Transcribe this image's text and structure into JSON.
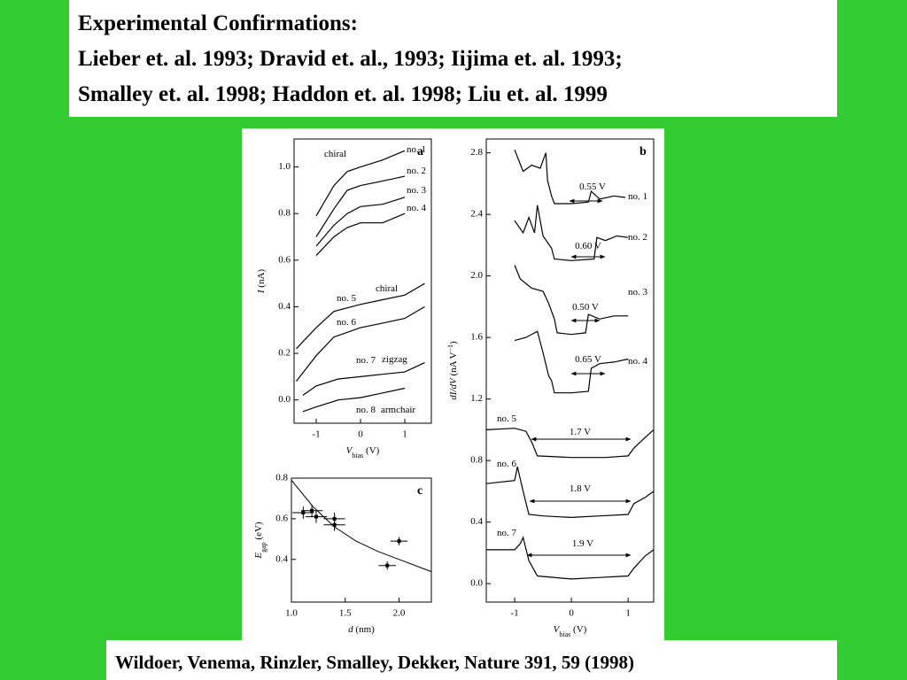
{
  "header": {
    "lines": [
      "Experimental Confirmations:",
      "Lieber et. al. 1993; Dravid et. al., 1993; Iijima et. al. 1993;",
      "Smalley et. al. 1998; Haddon et. al. 1998; Liu et. al. 1999"
    ]
  },
  "citation": "Wildoer, Venema, Rinzler, Smalley, Dekker, Nature 391, 59 (1998)",
  "chart_data": [
    {
      "type": "line",
      "panel_label": "a",
      "xlabel": [
        {
          "text": "V",
          "italic": true
        },
        {
          "text": "bias",
          "sub": true
        },
        {
          "text": " (V)"
        }
      ],
      "ylabel": [
        {
          "text": "I",
          "italic": true
        },
        {
          "text": " (nA)"
        }
      ],
      "xlim": [
        -1.5,
        1.6
      ],
      "ylim": [
        -0.1,
        1.12
      ],
      "xticks": [
        -1,
        0,
        1
      ],
      "yticks": [
        {
          "value": 0,
          "label": "0.0"
        },
        0.2,
        0.4,
        0.6,
        0.8,
        {
          "value": 1,
          "label": "1.0"
        }
      ],
      "annotations": [
        "chiral",
        "chiral",
        "zigzag",
        "armchair"
      ],
      "series": [
        {
          "name": "no. 1",
          "color": "#000000",
          "x": [
            -1,
            -0.6,
            -0.3,
            0,
            0.5,
            1.0
          ],
          "values": [
            0.79,
            0.92,
            0.98,
            1.0,
            1.03,
            1.07
          ]
        },
        {
          "name": "no. 2",
          "color": "#000000",
          "x": [
            -1,
            -0.6,
            -0.3,
            0,
            0.5,
            1.0
          ],
          "values": [
            0.7,
            0.82,
            0.9,
            0.92,
            0.94,
            0.96
          ]
        },
        {
          "name": "no. 3",
          "color": "#000000",
          "x": [
            -1,
            -0.6,
            -0.3,
            0,
            0.5,
            1.0
          ],
          "values": [
            0.66,
            0.75,
            0.8,
            0.83,
            0.84,
            0.87
          ]
        },
        {
          "name": "no. 4",
          "color": "#000000",
          "x": [
            -1,
            -0.6,
            -0.3,
            0,
            0.5,
            1.0
          ],
          "values": [
            0.62,
            0.7,
            0.74,
            0.76,
            0.76,
            0.8
          ]
        },
        {
          "name": "no. 5",
          "color": "#000000",
          "x": [
            -1.45,
            -1,
            -0.6,
            0,
            0.5,
            1.0,
            1.45
          ],
          "values": [
            0.22,
            0.31,
            0.38,
            0.41,
            0.43,
            0.45,
            0.5
          ]
        },
        {
          "name": "no. 6",
          "color": "#000000",
          "x": [
            -1.45,
            -1,
            -0.6,
            0,
            0.5,
            1.0,
            1.45
          ],
          "values": [
            0.08,
            0.19,
            0.27,
            0.31,
            0.33,
            0.35,
            0.4
          ]
        },
        {
          "name": "no. 7",
          "color": "#000000",
          "x": [
            -1.3,
            -1,
            -0.5,
            0,
            0.5,
            1.0,
            1.45
          ],
          "values": [
            0.02,
            0.06,
            0.09,
            0.1,
            0.11,
            0.12,
            0.16
          ]
        },
        {
          "name": "no. 8",
          "color": "#000000",
          "x": [
            -1.3,
            -1,
            -0.5,
            0,
            0.5,
            1.0
          ],
          "values": [
            -0.05,
            -0.03,
            0.0,
            0.01,
            0.03,
            0.05
          ]
        }
      ]
    },
    {
      "type": "line",
      "panel_label": "b",
      "xlabel": [
        {
          "text": "V",
          "italic": true
        },
        {
          "text": "bias",
          "sub": true
        },
        {
          "text": " (V)"
        }
      ],
      "ylabel": [
        {
          "text": "dI/dV",
          "italic": true
        },
        {
          "text": " (nA V"
        },
        {
          "text": "−1",
          "sup": true
        },
        {
          "text": ")"
        }
      ],
      "xlim": [
        -1.5,
        1.45
      ],
      "ylim": [
        -0.12,
        2.89
      ],
      "xticks": [
        -1,
        0,
        1
      ],
      "yticks": [
        {
          "value": 0,
          "label": "0.0"
        },
        0.4,
        0.8,
        1.2,
        1.6,
        {
          "value": 2,
          "label": "2.0"
        },
        2.4,
        2.8
      ],
      "series": [
        {
          "name": "no. 1",
          "gap_label": "0.55 V",
          "color": "#000000",
          "x": [
            -1,
            -0.85,
            -0.7,
            -0.55,
            -0.45,
            -0.42,
            -0.35,
            -0.3,
            0,
            0.3,
            0.35,
            0.5,
            0.75,
            0.95
          ],
          "values": [
            2.82,
            2.68,
            2.72,
            2.7,
            2.8,
            2.62,
            2.52,
            2.47,
            2.47,
            2.48,
            2.55,
            2.5,
            2.52,
            2.51
          ]
        },
        {
          "name": "no. 2",
          "gap_label": "0.60 V",
          "color": "#000000",
          "x": [
            -1,
            -0.85,
            -0.75,
            -0.65,
            -0.6,
            -0.5,
            -0.35,
            -0.3,
            0,
            0.4,
            0.45,
            0.6,
            0.8,
            1.0
          ],
          "values": [
            2.36,
            2.28,
            2.38,
            2.28,
            2.46,
            2.26,
            2.18,
            2.11,
            2.1,
            2.11,
            2.25,
            2.23,
            2.26,
            2.25
          ]
        },
        {
          "name": "no. 3",
          "gap_label": "0.50 V",
          "color": "#000000",
          "x": [
            -1,
            -0.9,
            -0.7,
            -0.5,
            -0.4,
            -0.3,
            -0.25,
            0,
            0.25,
            0.3,
            0.5,
            0.75,
            1.0
          ],
          "values": [
            2.07,
            1.98,
            1.92,
            1.9,
            1.82,
            1.72,
            1.63,
            1.62,
            1.63,
            1.75,
            1.72,
            1.74,
            1.74
          ]
        },
        {
          "name": "no. 4",
          "gap_label": "0.65 V",
          "color": "#000000",
          "x": [
            -1,
            -0.8,
            -0.6,
            -0.5,
            -0.4,
            -0.35,
            -0.3,
            0,
            0.3,
            0.35,
            0.5,
            0.75,
            1.0
          ],
          "values": [
            1.58,
            1.6,
            1.64,
            1.5,
            1.35,
            1.32,
            1.24,
            1.24,
            1.25,
            1.4,
            1.43,
            1.44,
            1.46
          ]
        },
        {
          "name": "no. 5",
          "gap_label": "1.7 V",
          "color": "#000000",
          "x": [
            -1.5,
            -1.0,
            -0.8,
            -0.7,
            -0.6,
            0,
            0.6,
            1.0,
            1.1,
            1.3,
            1.45
          ],
          "values": [
            1.0,
            1.01,
            0.99,
            0.92,
            0.83,
            0.82,
            0.82,
            0.83,
            0.88,
            0.95,
            1.0
          ]
        },
        {
          "name": "no. 6",
          "gap_label": "1.8 V",
          "color": "#000000",
          "x": [
            -1.5,
            -1.0,
            -0.95,
            -0.85,
            -0.75,
            -0.5,
            0,
            0.5,
            1.0,
            1.1,
            1.3,
            1.45
          ],
          "values": [
            0.65,
            0.67,
            0.76,
            0.6,
            0.45,
            0.44,
            0.43,
            0.44,
            0.45,
            0.52,
            0.56,
            0.6
          ]
        },
        {
          "name": "no. 7",
          "gap_label": "1.9 V",
          "color": "#000000",
          "x": [
            -1.5,
            -1.0,
            -0.9,
            -0.85,
            -0.75,
            -0.6,
            0,
            0.5,
            1.0,
            1.1,
            1.3,
            1.45
          ],
          "values": [
            0.22,
            0.22,
            0.26,
            0.3,
            0.15,
            0.05,
            0.03,
            0.04,
            0.05,
            0.1,
            0.18,
            0.22
          ]
        }
      ]
    },
    {
      "type": "scatter",
      "panel_label": "c",
      "xlabel": [
        {
          "text": "d",
          "italic": true
        },
        {
          "text": "  (nm)"
        }
      ],
      "ylabel": [
        {
          "text": "E",
          "italic": true
        },
        {
          "text": "gap",
          "sub": true
        },
        {
          "text": " (eV)"
        }
      ],
      "xlim": [
        1.0,
        2.3
      ],
      "ylim": [
        0.19,
        0.8
      ],
      "xticks": [
        {
          "value": 1,
          "label": "1.0"
        },
        1.5,
        {
          "value": 2,
          "label": "2.0"
        }
      ],
      "yticks": [
        0.4,
        0.6,
        0.8
      ],
      "series": [
        {
          "color": "#000000",
          "x": [
            1.11,
            1.19,
            1.23,
            1.4,
            1.4,
            1.89,
            2.0
          ],
          "values": [
            0.63,
            0.64,
            0.61,
            0.6,
            0.57,
            0.37,
            0.49
          ],
          "x_err": [
            0.1,
            0.1,
            0.1,
            0.1,
            0.1,
            0.08,
            0.08
          ],
          "y_err": [
            0.03,
            0.03,
            0.03,
            0.03,
            0.03,
            0.02,
            0.02
          ]
        }
      ],
      "fit": {
        "color": "#000000",
        "x": [
          1.0,
          1.2,
          1.4,
          1.6,
          1.8,
          2.0,
          2.2,
          2.3
        ],
        "values": [
          0.79,
          0.66,
          0.56,
          0.49,
          0.44,
          0.4,
          0.36,
          0.34
        ]
      }
    }
  ]
}
